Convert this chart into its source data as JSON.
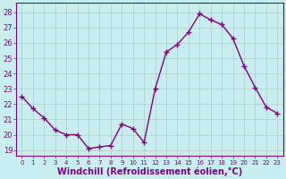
{
  "x": [
    0,
    1,
    2,
    3,
    4,
    5,
    6,
    7,
    8,
    9,
    10,
    11,
    12,
    13,
    14,
    15,
    16,
    17,
    18,
    19,
    20,
    21,
    22,
    23
  ],
  "y": [
    22.5,
    21.7,
    21.1,
    20.3,
    20.0,
    20.0,
    19.1,
    19.2,
    19.3,
    20.7,
    20.4,
    19.5,
    23.0,
    25.4,
    25.9,
    26.7,
    27.9,
    27.5,
    27.2,
    26.3,
    24.5,
    23.1,
    21.8,
    21.4
  ],
  "line_color": "#800080",
  "marker": "+",
  "marker_size": 4,
  "linewidth": 1.0,
  "xlabel": "Windchill (Refroidissement éolien,°C)",
  "xlabel_fontsize": 7,
  "ylabel_ticks": [
    19,
    20,
    21,
    22,
    23,
    24,
    25,
    26,
    27,
    28
  ],
  "xlim": [
    -0.5,
    23.5
  ],
  "ylim": [
    18.6,
    28.6
  ],
  "xticks": [
    0,
    1,
    2,
    3,
    4,
    5,
    6,
    7,
    8,
    9,
    10,
    11,
    12,
    13,
    14,
    15,
    16,
    17,
    18,
    19,
    20,
    21,
    22,
    23
  ],
  "bg_color": "#c8eef0",
  "grid_color": "#aacccc",
  "spine_color": "#800080",
  "tick_color": "#800080",
  "label_color": "#800080"
}
